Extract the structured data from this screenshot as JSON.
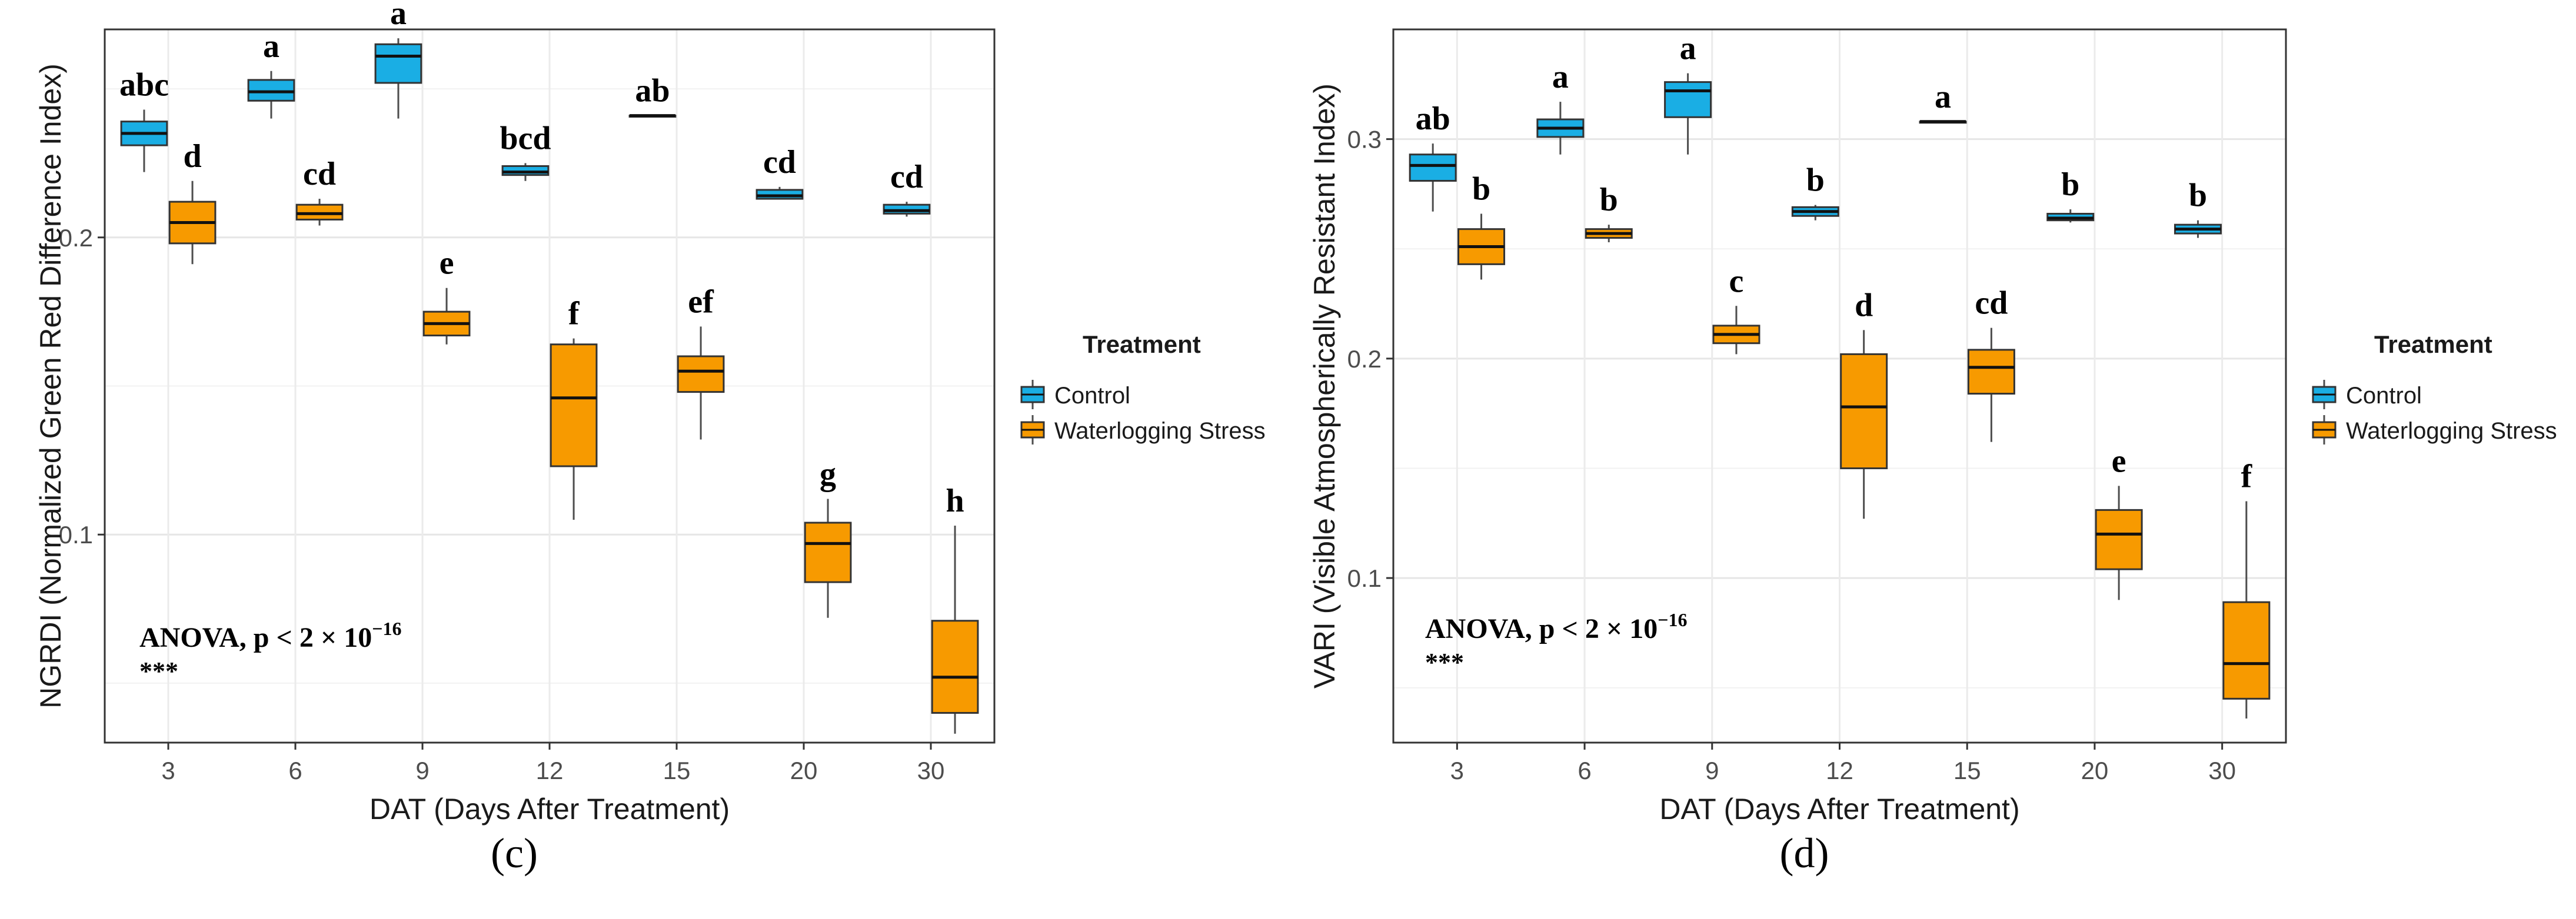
{
  "chart_data": [
    {
      "type": "boxplot",
      "panel_label": "(c)",
      "ylabel": "NGRDI (Normalized Green Red Difference Index)",
      "xlabel": "DAT (Days After Treatment)",
      "ylim": [
        0.03,
        0.27
      ],
      "yticks": [
        0.1,
        0.2
      ],
      "ytick_labels": [
        "0.1",
        "0.2"
      ],
      "categories": [
        "3",
        "6",
        "9",
        "12",
        "15",
        "20",
        "30"
      ],
      "legend": {
        "title": "Treatment",
        "entries": [
          "Control",
          "Waterlogging Stress"
        ],
        "position": "right"
      },
      "colors": {
        "control": "#1aaee4",
        "stress": "#f79a00"
      },
      "annotation": {
        "line1": "ANOVA, p < 2 × 10",
        "exponent": "−16",
        "line2": "***"
      },
      "series": [
        {
          "name": "Control",
          "boxes": [
            {
              "min": 0.222,
              "q1": 0.231,
              "median": 0.235,
              "q3": 0.239,
              "max": 0.243
            },
            {
              "min": 0.24,
              "q1": 0.246,
              "median": 0.249,
              "q3": 0.253,
              "max": 0.256
            },
            {
              "min": 0.24,
              "q1": 0.252,
              "median": 0.261,
              "q3": 0.265,
              "max": 0.267
            },
            {
              "min": 0.219,
              "q1": 0.221,
              "median": 0.222,
              "q3": 0.224,
              "max": 0.225
            },
            {
              "min": 0.241,
              "q1": 0.241,
              "median": 0.241,
              "q3": 0.241,
              "max": 0.241
            },
            {
              "min": 0.213,
              "q1": 0.213,
              "median": 0.214,
              "q3": 0.216,
              "max": 0.217
            },
            {
              "min": 0.207,
              "q1": 0.208,
              "median": 0.209,
              "q3": 0.211,
              "max": 0.212
            }
          ],
          "letters": [
            "abc",
            "a",
            "a",
            "bcd",
            "ab",
            "cd",
            "cd"
          ]
        },
        {
          "name": "Waterlogging Stress",
          "boxes": [
            {
              "min": 0.191,
              "q1": 0.198,
              "median": 0.205,
              "q3": 0.212,
              "max": 0.219
            },
            {
              "min": 0.204,
              "q1": 0.206,
              "median": 0.208,
              "q3": 0.211,
              "max": 0.213
            },
            {
              "min": 0.164,
              "q1": 0.167,
              "median": 0.171,
              "q3": 0.175,
              "max": 0.183
            },
            {
              "min": 0.105,
              "q1": 0.123,
              "median": 0.146,
              "q3": 0.164,
              "max": 0.166
            },
            {
              "min": 0.132,
              "q1": 0.148,
              "median": 0.155,
              "q3": 0.16,
              "max": 0.17
            },
            {
              "min": 0.072,
              "q1": 0.084,
              "median": 0.097,
              "q3": 0.104,
              "max": 0.112
            },
            {
              "min": 0.033,
              "q1": 0.04,
              "median": 0.052,
              "q3": 0.071,
              "max": 0.103
            }
          ],
          "letters": [
            "d",
            "cd",
            "e",
            "f",
            "ef",
            "g",
            "h"
          ]
        }
      ]
    },
    {
      "type": "boxplot",
      "panel_label": "(d)",
      "ylabel": "VARI (Visible Atmospherically Resistant Index)",
      "xlabel": "DAT (Days After Treatment)",
      "ylim": [
        0.025,
        0.35
      ],
      "yticks": [
        0.1,
        0.2,
        0.3
      ],
      "ytick_labels": [
        "0.1",
        "0.2",
        "0.3"
      ],
      "categories": [
        "3",
        "6",
        "9",
        "12",
        "15",
        "20",
        "30"
      ],
      "legend": {
        "title": "Treatment",
        "entries": [
          "Control",
          "Waterlogging Stress"
        ],
        "position": "right"
      },
      "colors": {
        "control": "#1aaee4",
        "stress": "#f79a00"
      },
      "annotation": {
        "line1": "ANOVA, p < 2 × 10",
        "exponent": "−16",
        "line2": "***"
      },
      "series": [
        {
          "name": "Control",
          "boxes": [
            {
              "min": 0.267,
              "q1": 0.281,
              "median": 0.288,
              "q3": 0.293,
              "max": 0.298
            },
            {
              "min": 0.293,
              "q1": 0.301,
              "median": 0.305,
              "q3": 0.309,
              "max": 0.317
            },
            {
              "min": 0.293,
              "q1": 0.31,
              "median": 0.322,
              "q3": 0.326,
              "max": 0.33
            },
            {
              "min": 0.263,
              "q1": 0.265,
              "median": 0.267,
              "q3": 0.269,
              "max": 0.27
            },
            {
              "min": 0.308,
              "q1": 0.308,
              "median": 0.308,
              "q3": 0.308,
              "max": 0.308
            },
            {
              "min": 0.262,
              "q1": 0.263,
              "median": 0.264,
              "q3": 0.266,
              "max": 0.268
            },
            {
              "min": 0.255,
              "q1": 0.257,
              "median": 0.259,
              "q3": 0.261,
              "max": 0.263
            }
          ],
          "letters": [
            "ab",
            "a",
            "a",
            "b",
            "a",
            "b",
            "b"
          ]
        },
        {
          "name": "Waterlogging Stress",
          "boxes": [
            {
              "min": 0.236,
              "q1": 0.243,
              "median": 0.251,
              "q3": 0.259,
              "max": 0.266
            },
            {
              "min": 0.253,
              "q1": 0.255,
              "median": 0.257,
              "q3": 0.259,
              "max": 0.261
            },
            {
              "min": 0.202,
              "q1": 0.207,
              "median": 0.211,
              "q3": 0.215,
              "max": 0.224
            },
            {
              "min": 0.127,
              "q1": 0.15,
              "median": 0.178,
              "q3": 0.202,
              "max": 0.213
            },
            {
              "min": 0.162,
              "q1": 0.184,
              "median": 0.196,
              "q3": 0.204,
              "max": 0.214
            },
            {
              "min": 0.09,
              "q1": 0.104,
              "median": 0.12,
              "q3": 0.131,
              "max": 0.142
            },
            {
              "min": 0.036,
              "q1": 0.045,
              "median": 0.061,
              "q3": 0.089,
              "max": 0.135
            }
          ],
          "letters": [
            "b",
            "b",
            "c",
            "d",
            "cd",
            "e",
            "f"
          ]
        }
      ]
    }
  ]
}
